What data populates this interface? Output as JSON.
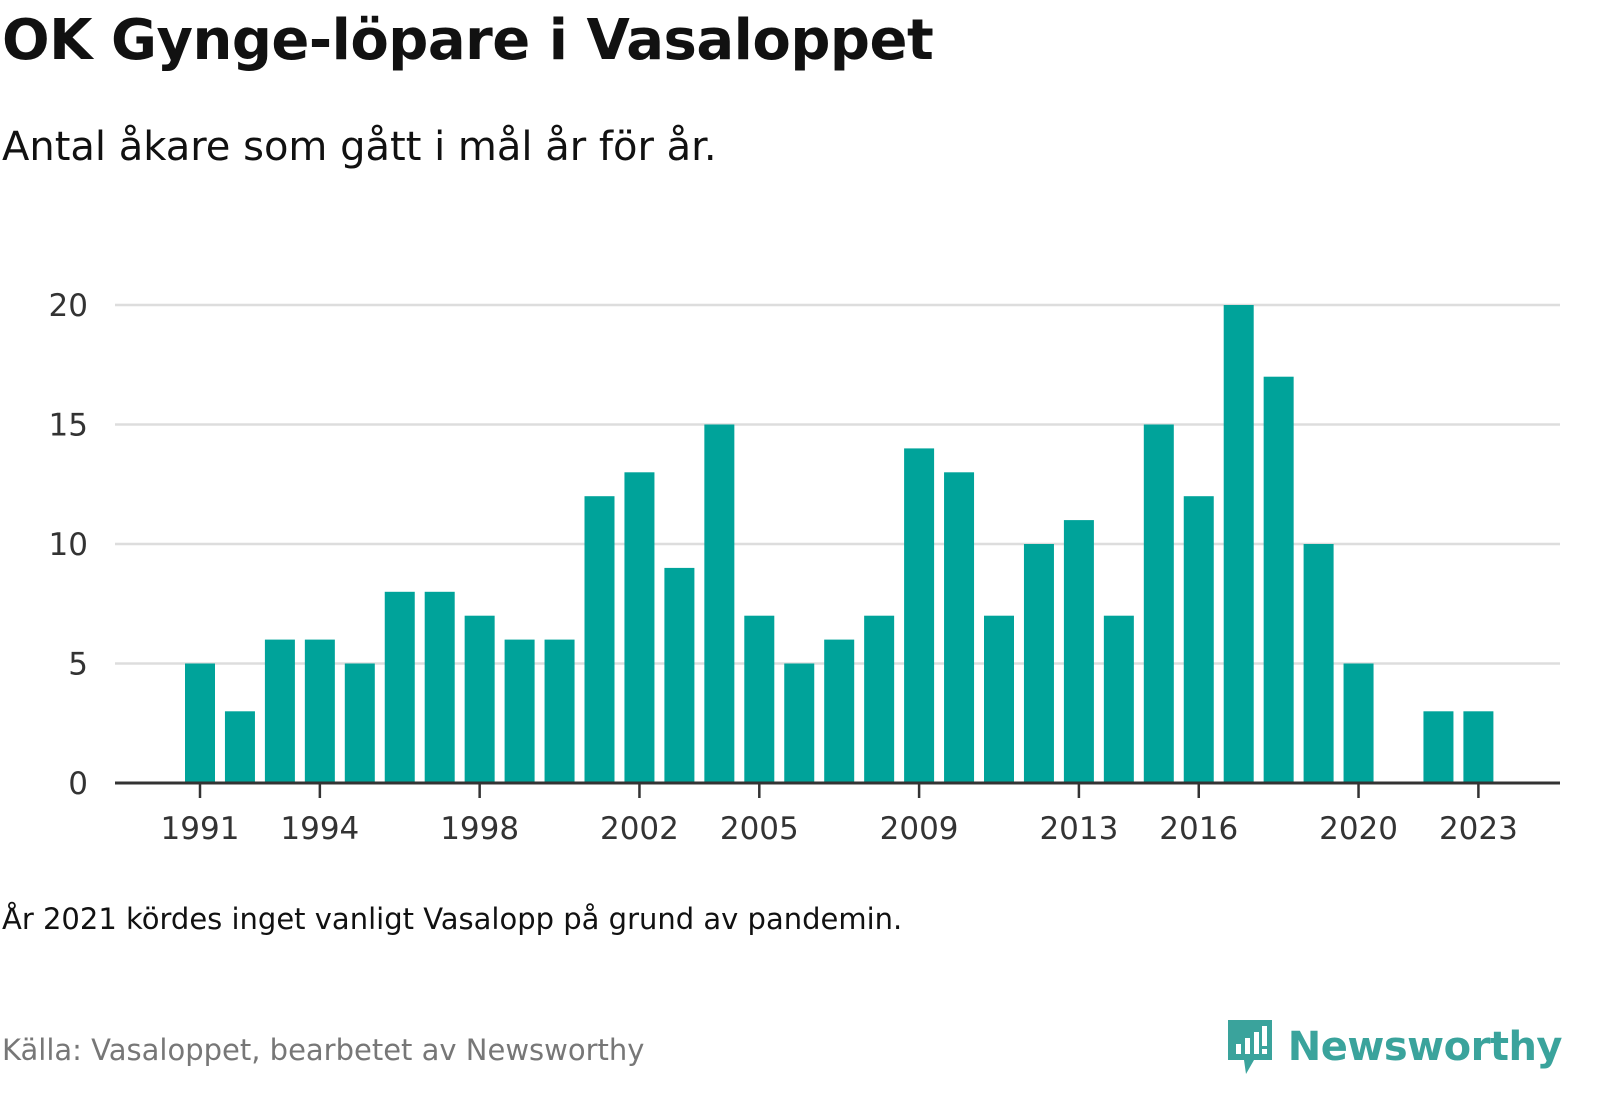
{
  "title": "OK Gynge-löpare i Vasaloppet",
  "subtitle": "Antal åkare som gått i mål år för år.",
  "note": "År 2021 kördes inget vanligt Vasalopp på grund av pandemin.",
  "source": "Källa: Vasaloppet, bearbetet av Newsworthy",
  "brand": {
    "name": "Newsworthy",
    "icon": "newsworthy-logo-icon",
    "color": "#3aa39c"
  },
  "chart_data": {
    "type": "bar",
    "title": "OK Gynge-löpare i Vasaloppet",
    "subtitle": "Antal åkare som gått i mål år för år.",
    "xlabel": "",
    "ylabel": "",
    "ylim": [
      0,
      20
    ],
    "yticks": [
      0,
      5,
      10,
      15,
      20
    ],
    "xtick_labels": [
      "1991",
      "1994",
      "1998",
      "2002",
      "2005",
      "2009",
      "2013",
      "2016",
      "2020",
      "2023"
    ],
    "grid": true,
    "bar_color": "#00a39a",
    "categories": [
      1991,
      1992,
      1993,
      1994,
      1995,
      1996,
      1997,
      1998,
      1999,
      2000,
      2001,
      2002,
      2003,
      2004,
      2005,
      2006,
      2007,
      2008,
      2009,
      2010,
      2011,
      2012,
      2013,
      2014,
      2015,
      2016,
      2017,
      2018,
      2019,
      2020,
      2021,
      2022,
      2023
    ],
    "values": [
      5,
      3,
      6,
      6,
      5,
      8,
      8,
      7,
      6,
      6,
      12,
      13,
      9,
      15,
      7,
      5,
      6,
      7,
      14,
      13,
      7,
      10,
      11,
      7,
      15,
      12,
      20,
      17,
      10,
      5,
      0,
      3,
      3
    ]
  }
}
